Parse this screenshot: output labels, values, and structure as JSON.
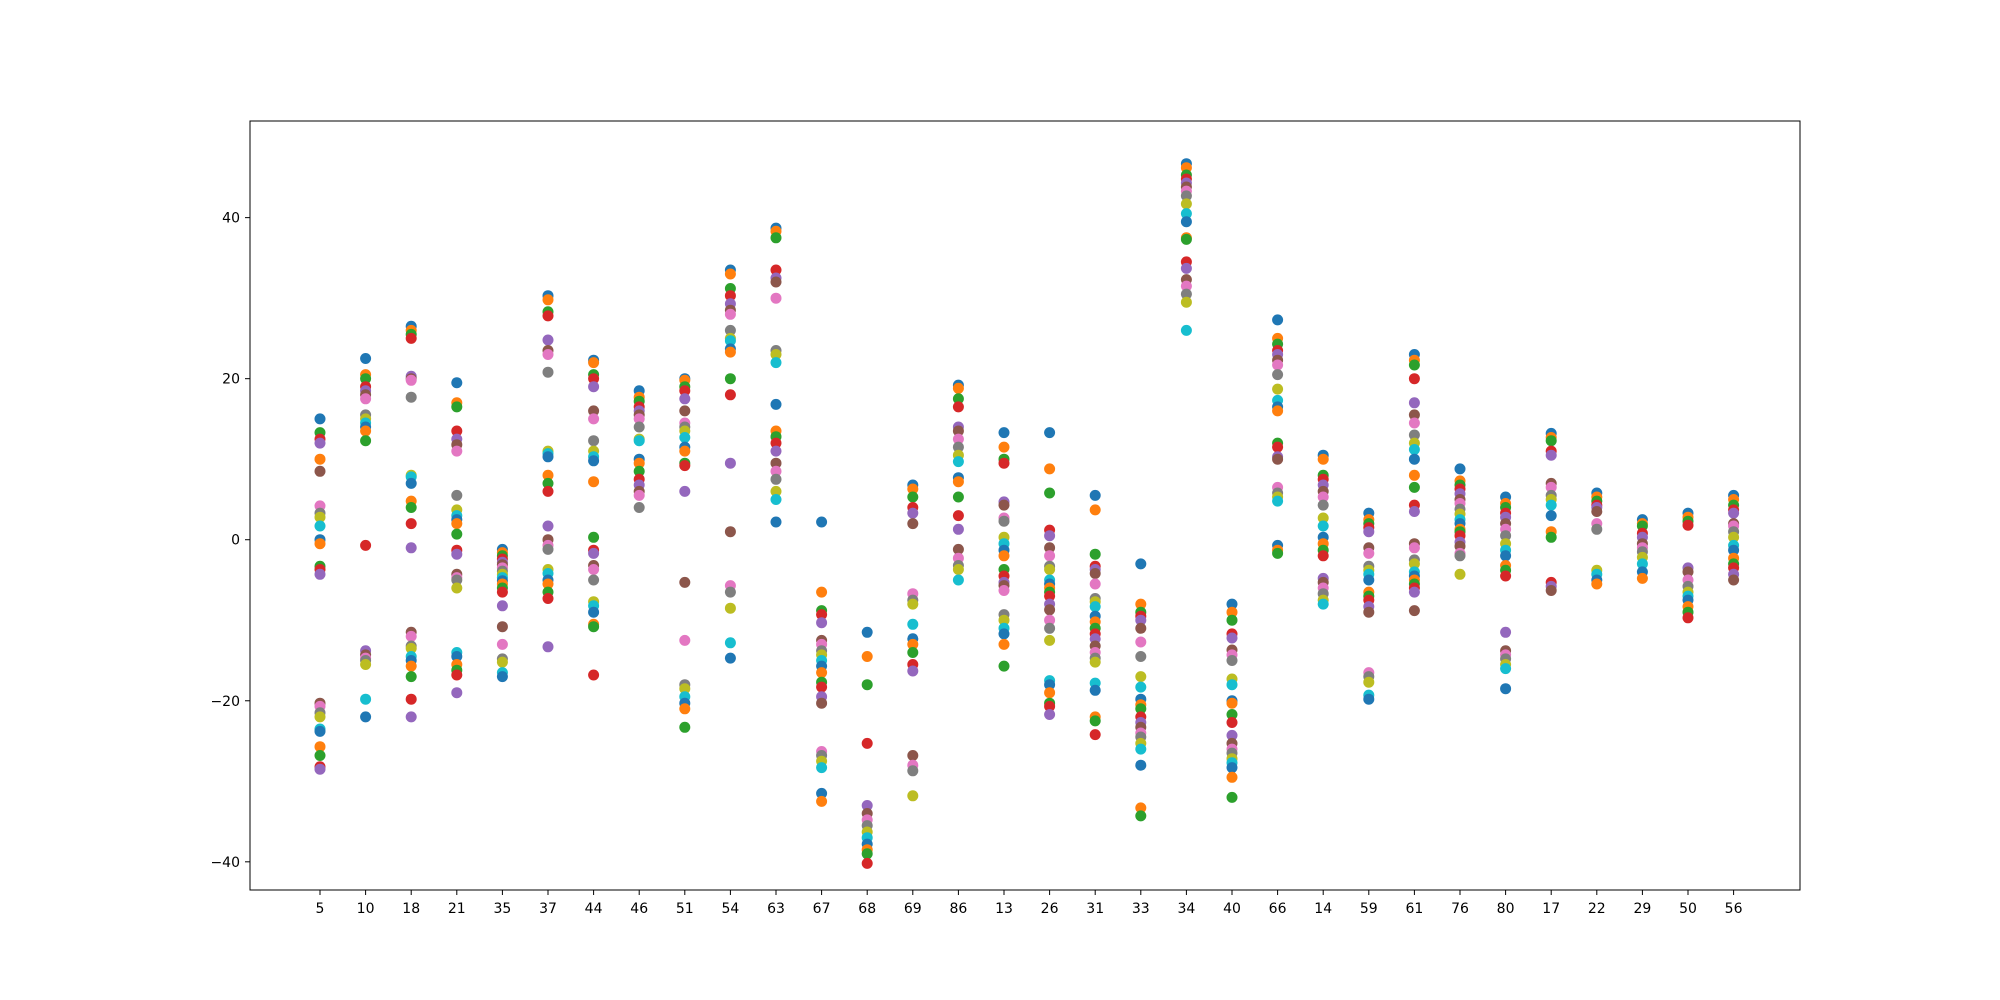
{
  "chart_data": {
    "type": "scatter",
    "title": "",
    "xlabel": "",
    "ylabel": "",
    "categories": [
      "5",
      "10",
      "18",
      "21",
      "35",
      "37",
      "44",
      "46",
      "51",
      "54",
      "63",
      "67",
      "68",
      "69",
      "86",
      "13",
      "26",
      "31",
      "33",
      "34",
      "40",
      "66",
      "14",
      "59",
      "61",
      "76",
      "80",
      "17",
      "22",
      "29",
      "50",
      "56"
    ],
    "yticks": [
      -40,
      -20,
      0,
      20,
      40
    ],
    "ylim": [
      -43.5,
      52
    ],
    "grid": false,
    "legend": "none",
    "palette": [
      "#1f77b4",
      "#ff7f0e",
      "#2ca02c",
      "#d62728",
      "#9467bd",
      "#8c564b",
      "#e377c2",
      "#7f7f7f",
      "#bcbd22",
      "#17becf"
    ],
    "points": [
      [
        15.0,
        10.0,
        13.3,
        12.5,
        12.0,
        8.5,
        4.2,
        3.3,
        2.8,
        1.7,
        0.0,
        -0.5,
        -3.3,
        -3.7,
        -4.3,
        -20.3,
        -20.7,
        -21.5,
        -22.0,
        -23.5,
        -23.8,
        -25.7,
        -26.8,
        -28.2,
        -28.5
      ],
      [
        22.5,
        20.5,
        20.0,
        19.0,
        18.5,
        18.0,
        17.5,
        15.5,
        15.0,
        14.5,
        14.0,
        13.5,
        12.3,
        -0.7,
        -13.8,
        -14.3,
        -14.7,
        -15.0,
        -15.5,
        -19.8,
        -22.0
      ],
      [
        26.5,
        26.0,
        25.5,
        25.0,
        20.3,
        20.0,
        19.8,
        17.7,
        8.0,
        7.8,
        7.0,
        4.8,
        4.0,
        2.0,
        -1.0,
        -11.5,
        -12.0,
        -13.2,
        -13.5,
        -14.5,
        -15.0,
        -15.7,
        -17.0,
        -19.8,
        -22.0
      ],
      [
        19.5,
        17.0,
        16.5,
        13.5,
        12.5,
        11.8,
        11.0,
        5.5,
        3.7,
        3.0,
        2.5,
        2.0,
        0.7,
        -1.3,
        -1.8,
        -4.3,
        -4.7,
        -5.0,
        -6.0,
        -14.0,
        -14.5,
        -15.5,
        -16.2,
        -16.8,
        -19.0
      ],
      [
        -1.2,
        -1.6,
        -2.0,
        -2.4,
        -2.8,
        -3.1,
        -3.5,
        -3.9,
        -4.3,
        -4.7,
        -5.1,
        -5.5,
        -6.0,
        -6.5,
        -8.2,
        -10.8,
        -13.0,
        -14.8,
        -15.2,
        -16.5,
        -17.0
      ],
      [
        30.3,
        29.8,
        28.3,
        27.8,
        24.8,
        23.5,
        23.0,
        20.8,
        11.0,
        10.7,
        10.3,
        8.0,
        7.0,
        6.0,
        1.7,
        0.0,
        -0.7,
        -1.2,
        -3.7,
        -4.2,
        -5.0,
        -5.5,
        -6.5,
        -7.3,
        -13.3
      ],
      [
        22.3,
        22.0,
        20.5,
        20.0,
        19.0,
        16.0,
        15.0,
        12.3,
        11.0,
        10.3,
        9.8,
        7.2,
        0.3,
        -1.3,
        -1.7,
        -3.2,
        -3.7,
        -5.0,
        -7.7,
        -8.2,
        -9.0,
        -10.5,
        -10.8,
        -16.8
      ],
      [
        18.5,
        17.7,
        17.2,
        16.5,
        16.0,
        15.5,
        15.0,
        14.0,
        12.5,
        12.3,
        10.0,
        9.5,
        8.5,
        7.5,
        6.8,
        6.0,
        5.5,
        4.0
      ],
      [
        20.0,
        19.8,
        19.0,
        18.5,
        17.5,
        16.0,
        14.5,
        14.0,
        13.5,
        12.7,
        11.5,
        11.0,
        9.5,
        9.2,
        6.0,
        -5.3,
        -12.5,
        -18.0,
        -18.5,
        -19.5,
        -20.3,
        -21.0,
        -23.3
      ],
      [
        33.5,
        33.0,
        31.2,
        30.3,
        29.3,
        28.5,
        28.0,
        26.0,
        25.0,
        24.7,
        23.7,
        23.3,
        20.0,
        18.0,
        9.5,
        1.0,
        -5.7,
        -6.5,
        -8.5,
        -12.8,
        -14.7
      ],
      [
        38.7,
        38.3,
        37.5,
        33.5,
        32.5,
        32.0,
        30.0,
        23.5,
        23.0,
        22.0,
        16.8,
        13.5,
        12.8,
        12.0,
        11.0,
        9.5,
        8.5,
        7.5,
        6.0,
        5.0,
        2.2
      ],
      [
        2.2,
        -6.5,
        -8.8,
        -9.3,
        -10.3,
        -12.5,
        -13.0,
        -13.8,
        -14.3,
        -15.0,
        -15.7,
        -16.5,
        -17.7,
        -18.3,
        -19.5,
        -20.3,
        -26.3,
        -26.8,
        -27.5,
        -28.3,
        -31.5,
        -32.5
      ],
      [
        -11.5,
        -14.5,
        -18.0,
        -25.3,
        -33.0,
        -34.0,
        -34.8,
        -35.5,
        -36.3,
        -37.0,
        -37.8,
        -38.5,
        -39.0,
        -40.2
      ],
      [
        6.8,
        6.3,
        5.3,
        4.0,
        3.3,
        2.0,
        -6.7,
        -7.5,
        -8.0,
        -10.5,
        -12.3,
        -13.0,
        -14.0,
        -15.5,
        -16.3,
        -26.8,
        -28.0,
        -28.7,
        -31.8
      ],
      [
        19.2,
        18.8,
        17.5,
        16.5,
        14.0,
        13.5,
        12.5,
        11.5,
        10.5,
        9.7,
        7.7,
        7.2,
        5.3,
        3.0,
        1.3,
        -1.2,
        -2.3,
        -3.2,
        -3.7,
        -5.0
      ],
      [
        13.3,
        11.5,
        10.0,
        9.5,
        4.7,
        4.3,
        2.7,
        2.3,
        0.3,
        -0.5,
        -1.3,
        -2.0,
        -3.7,
        -4.5,
        -5.3,
        -5.7,
        -6.3,
        -9.3,
        -10.0,
        -11.0,
        -11.7,
        -13.0,
        -15.7
      ],
      [
        13.3,
        8.8,
        5.8,
        1.2,
        0.5,
        -1.0,
        -2.0,
        -3.3,
        -3.7,
        -5.0,
        -5.5,
        -6.0,
        -6.5,
        -7.0,
        -8.0,
        -8.7,
        -10.0,
        -11.0,
        -12.5,
        -17.5,
        -18.0,
        -19.0,
        -20.3,
        -20.7,
        -21.7
      ],
      [
        5.5,
        3.7,
        -1.8,
        -3.3,
        -3.7,
        -4.2,
        -5.5,
        -7.3,
        -7.7,
        -8.3,
        -9.5,
        -10.2,
        -11.0,
        -11.7,
        -12.3,
        -13.2,
        -14.0,
        -14.7,
        -15.2,
        -17.8,
        -18.7,
        -22.0,
        -22.5,
        -24.2
      ],
      [
        -3.0,
        -8.0,
        -9.0,
        -9.5,
        -10.0,
        -11.0,
        -12.7,
        -14.5,
        -17.0,
        -18.3,
        -19.8,
        -20.5,
        -21.0,
        -22.0,
        -22.7,
        -23.3,
        -24.0,
        -24.5,
        -25.3,
        -26.0,
        -28.0,
        -33.3,
        -34.3
      ],
      [
        46.7,
        46.2,
        45.3,
        44.8,
        44.3,
        43.8,
        43.3,
        42.7,
        41.7,
        40.5,
        39.5,
        37.5,
        37.3,
        34.5,
        33.7,
        32.3,
        31.5,
        30.5,
        29.5,
        26.0
      ],
      [
        -8.0,
        -9.0,
        -10.0,
        -11.7,
        -12.2,
        -13.7,
        -14.3,
        -15.0,
        -17.3,
        -18.0,
        -20.0,
        -20.3,
        -21.7,
        -22.7,
        -24.3,
        -25.3,
        -26.0,
        -26.5,
        -27.2,
        -27.7,
        -28.3,
        -29.5,
        -32.0
      ],
      [
        27.3,
        25.0,
        24.3,
        23.5,
        23.0,
        22.3,
        21.7,
        20.5,
        18.7,
        17.3,
        16.5,
        16.0,
        12.0,
        11.5,
        10.3,
        10.0,
        6.5,
        5.8,
        5.3,
        4.8,
        -0.7,
        -1.3,
        -1.7
      ],
      [
        10.5,
        10.0,
        8.0,
        7.5,
        6.8,
        6.0,
        5.3,
        4.3,
        2.7,
        1.7,
        0.3,
        -0.5,
        -1.3,
        -2.0,
        -4.8,
        -5.3,
        -6.0,
        -6.7,
        -7.5,
        -8.0
      ],
      [
        3.3,
        2.5,
        2.0,
        1.5,
        1.0,
        -1.0,
        -1.7,
        -3.3,
        -3.8,
        -4.3,
        -5.0,
        -6.5,
        -7.0,
        -7.5,
        -8.3,
        -9.0,
        -16.5,
        -17.0,
        -17.7,
        -19.3,
        -19.8
      ],
      [
        23.0,
        22.3,
        21.7,
        20.0,
        17.0,
        15.5,
        14.5,
        13.0,
        12.0,
        11.2,
        10.0,
        8.0,
        6.5,
        4.3,
        3.5,
        -0.5,
        -1.0,
        -2.5,
        -3.0,
        -4.0,
        -4.5,
        -5.0,
        -5.5,
        -6.0,
        -6.5,
        -8.8
      ],
      [
        8.8,
        7.3,
        6.8,
        6.3,
        5.7,
        5.0,
        4.5,
        3.8,
        3.2,
        2.5,
        2.0,
        1.3,
        1.0,
        0.5,
        -0.3,
        -0.8,
        -1.7,
        -2.0,
        -4.3
      ],
      [
        5.3,
        4.5,
        4.0,
        3.3,
        2.8,
        2.0,
        1.3,
        0.5,
        -0.5,
        -1.3,
        -2.0,
        -3.2,
        -3.8,
        -4.5,
        -11.5,
        -13.8,
        -14.3,
        -14.8,
        -15.5,
        -16.0,
        -18.5
      ],
      [
        13.2,
        12.7,
        12.3,
        11.0,
        10.5,
        7.0,
        6.5,
        5.5,
        5.0,
        4.3,
        3.0,
        1.0,
        0.3,
        -5.3,
        -5.8,
        -6.3
      ],
      [
        5.8,
        5.3,
        4.8,
        4.3,
        4.0,
        3.5,
        2.0,
        1.3,
        -3.8,
        -4.3,
        -5.0,
        -5.5
      ],
      [
        2.5,
        2.0,
        1.7,
        0.8,
        0.3,
        -0.5,
        -1.0,
        -1.5,
        -2.2,
        -3.0,
        -4.0,
        -4.8
      ],
      [
        3.3,
        2.8,
        2.3,
        1.8,
        -3.5,
        -4.0,
        -5.0,
        -5.8,
        -6.5,
        -7.0,
        -7.5,
        -8.3,
        -9.0,
        -9.7
      ],
      [
        5.5,
        5.0,
        4.3,
        3.7,
        3.3,
        2.0,
        1.7,
        1.0,
        0.3,
        -0.7,
        -1.3,
        -2.3,
        -3.0,
        -3.5,
        -4.3,
        -5.0
      ]
    ]
  }
}
